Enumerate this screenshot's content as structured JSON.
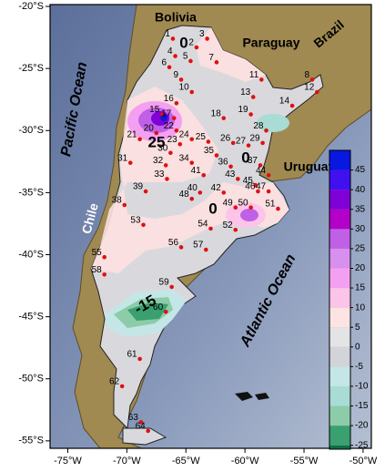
{
  "map": {
    "xlim": [
      -76.5,
      -49.3
    ],
    "ylim": [
      -19.85,
      -55.6
    ],
    "xticks": [
      {
        "value": -75,
        "label": "-75°W"
      },
      {
        "value": -70,
        "label": "-70°W"
      },
      {
        "value": -65,
        "label": "-65°W"
      },
      {
        "value": -60,
        "label": "-60°W"
      },
      {
        "value": -55,
        "label": "-55°W"
      },
      {
        "value": -50,
        "label": "-50°W"
      }
    ],
    "yticks": [
      {
        "value": -20,
        "label": "-20°S"
      },
      {
        "value": -25,
        "label": "-25°S"
      },
      {
        "value": -30,
        "label": "-30°S"
      },
      {
        "value": -35,
        "label": "-35°S"
      },
      {
        "value": -40,
        "label": "-40°S"
      },
      {
        "value": -45,
        "label": "-45°S"
      },
      {
        "value": -50,
        "label": "-50°S"
      },
      {
        "value": -55,
        "label": "-55°S"
      }
    ],
    "places": {
      "bolivia": "Bolivia",
      "paraguay": "Paraguay",
      "brazil": "Brazil",
      "uruguay": "Uruguay",
      "chile": "Chile",
      "pacific": "Pacific Ocean",
      "atlantic": "Atlantic Ocean"
    },
    "contour_labels": [
      0,
      25,
      0,
      0,
      -15
    ],
    "station_color": "#e01010",
    "stations": [
      {
        "label": "1",
        "lon": -66.1,
        "lat": -22.6
      },
      {
        "label": "2",
        "lon": -64.1,
        "lat": -23.3
      },
      {
        "label": "3",
        "lon": -63.2,
        "lat": -22.6
      },
      {
        "label": "4",
        "lon": -65.9,
        "lat": -24.0
      },
      {
        "label": "5",
        "lon": -64.6,
        "lat": -24.4
      },
      {
        "label": "6",
        "lon": -66.4,
        "lat": -24.9
      },
      {
        "label": "7",
        "lon": -62.4,
        "lat": -24.5
      },
      {
        "label": "8",
        "lon": -54.3,
        "lat": -25.9
      },
      {
        "label": "9",
        "lon": -65.4,
        "lat": -25.9
      },
      {
        "label": "10",
        "lon": -64.5,
        "lat": -26.9
      },
      {
        "label": "11",
        "lon": -58.6,
        "lat": -25.9
      },
      {
        "label": "12",
        "lon": -53.9,
        "lat": -26.9
      },
      {
        "label": "13",
        "lon": -59.3,
        "lat": -27.3
      },
      {
        "label": "14",
        "lon": -56.0,
        "lat": -28.0
      },
      {
        "label": "15",
        "lon": -67.0,
        "lat": -28.7
      },
      {
        "label": "16",
        "lon": -65.8,
        "lat": -27.8
      },
      {
        "label": "17",
        "lon": -66.0,
        "lat": -29.0
      },
      {
        "label": "18",
        "lon": -61.8,
        "lat": -29.0
      },
      {
        "label": "19",
        "lon": -59.5,
        "lat": -28.7
      },
      {
        "label": "20",
        "lon": -67.5,
        "lat": -30.2
      },
      {
        "label": "21",
        "lon": -68.9,
        "lat": -30.7
      },
      {
        "label": "22",
        "lon": -65.8,
        "lat": -30.0
      },
      {
        "label": "23",
        "lon": -65.5,
        "lat": -31.1
      },
      {
        "label": "24",
        "lon": -64.5,
        "lat": -30.7
      },
      {
        "label": "25",
        "lon": -63.1,
        "lat": -30.9
      },
      {
        "label": "26",
        "lon": -61.0,
        "lat": -31.0
      },
      {
        "label": "27",
        "lon": -59.7,
        "lat": -31.2
      },
      {
        "label": "28",
        "lon": -58.2,
        "lat": -30.0
      },
      {
        "label": "29",
        "lon": -58.5,
        "lat": -31.0
      },
      {
        "label": "30",
        "lon": -66.3,
        "lat": -31.8
      },
      {
        "label": "31",
        "lon": -69.7,
        "lat": -32.6
      },
      {
        "label": "32",
        "lon": -66.7,
        "lat": -32.8
      },
      {
        "label": "33",
        "lon": -66.6,
        "lat": -33.9
      },
      {
        "label": "34",
        "lon": -64.5,
        "lat": -32.6
      },
      {
        "label": "35",
        "lon": -62.4,
        "lat": -32.0
      },
      {
        "label": "36",
        "lon": -61.2,
        "lat": -32.9
      },
      {
        "label": "37",
        "lon": -58.7,
        "lat": -32.8
      },
      {
        "label": "38",
        "lon": -70.2,
        "lat": -36.0
      },
      {
        "label": "39",
        "lon": -68.4,
        "lat": -34.9
      },
      {
        "label": "40",
        "lon": -63.8,
        "lat": -35.0
      },
      {
        "label": "41",
        "lon": -63.5,
        "lat": -33.6
      },
      {
        "label": "42",
        "lon": -61.8,
        "lat": -35.0
      },
      {
        "label": "43",
        "lon": -60.6,
        "lat": -33.9
      },
      {
        "label": "44",
        "lon": -58.0,
        "lat": -33.6
      },
      {
        "label": "45",
        "lon": -59.1,
        "lat": -34.4
      },
      {
        "label": "46",
        "lon": -58.9,
        "lat": -34.9
      },
      {
        "label": "47",
        "lon": -58.0,
        "lat": -34.9
      },
      {
        "label": "48",
        "lon": -64.5,
        "lat": -35.5
      },
      {
        "label": "49",
        "lon": -60.8,
        "lat": -36.2
      },
      {
        "label": "50",
        "lon": -59.5,
        "lat": -36.2
      },
      {
        "label": "51",
        "lon": -57.2,
        "lat": -36.3
      },
      {
        "label": "52",
        "lon": -60.8,
        "lat": -38.0
      },
      {
        "label": "53",
        "lon": -68.6,
        "lat": -37.6
      },
      {
        "label": "54",
        "lon": -62.9,
        "lat": -37.9
      },
      {
        "label": "55",
        "lon": -71.9,
        "lat": -40.2
      },
      {
        "label": "56",
        "lon": -65.4,
        "lat": -39.4
      },
      {
        "label": "57",
        "lon": -63.3,
        "lat": -39.6
      },
      {
        "label": "58",
        "lon": -71.9,
        "lat": -41.6
      },
      {
        "label": "59",
        "lon": -66.2,
        "lat": -42.6
      },
      {
        "label": "60",
        "lon": -66.7,
        "lat": -44.6
      },
      {
        "label": "61",
        "lon": -68.9,
        "lat": -48.4
      },
      {
        "label": "62",
        "lon": -70.4,
        "lat": -50.6
      },
      {
        "label": "63",
        "lon": -68.8,
        "lat": -53.5
      },
      {
        "label": "64",
        "lon": -68.2,
        "lat": -54.2
      }
    ],
    "colorbar": {
      "clim": [
        -26,
        50
      ],
      "bins": [
        -30,
        -25,
        -20,
        -15,
        -10,
        -5,
        0,
        5,
        10,
        15,
        20,
        25,
        30,
        35,
        40,
        45,
        50
      ],
      "colors": [
        "#0e6e46",
        "#3aa070",
        "#8ccca8",
        "#a8dcd4",
        "#c4e6e6",
        "#d2d4da",
        "#e4e4e6",
        "#fde4e2",
        "#fcc4e8",
        "#f4a0f0",
        "#d890ee",
        "#c060e6",
        "#b400c8",
        "#8000d8",
        "#4010f0",
        "#0818e0"
      ],
      "ticks": [
        -25,
        -20,
        -15,
        -10,
        -5,
        0,
        5,
        10,
        15,
        20,
        25,
        30,
        35,
        40,
        45
      ]
    }
  }
}
